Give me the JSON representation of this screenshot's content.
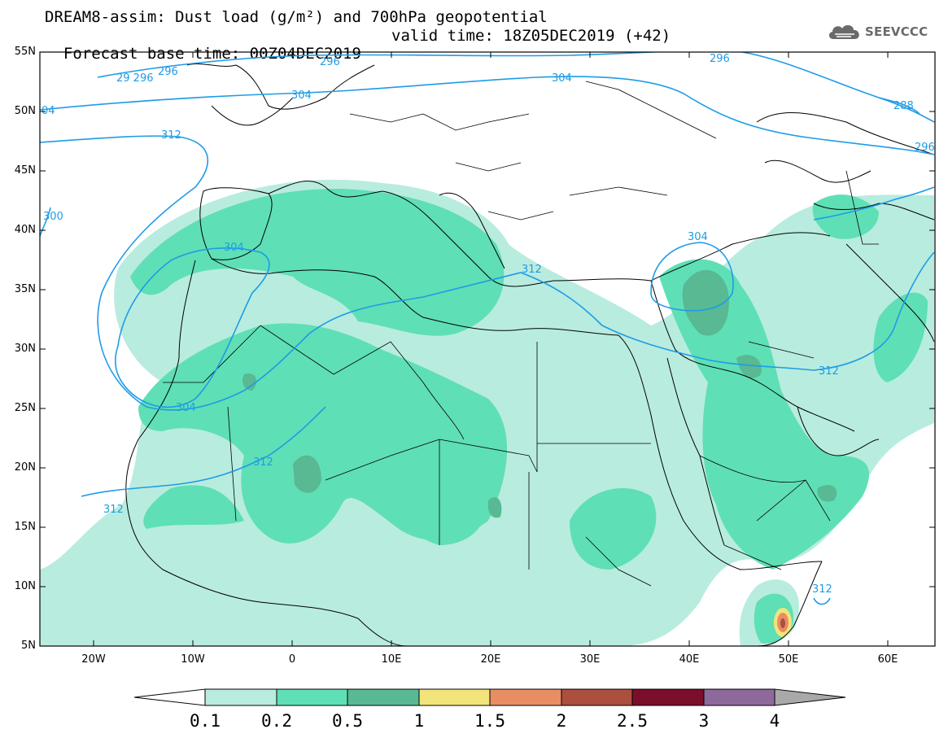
{
  "title": {
    "line1": "DREAM8-assim: Dust load (g/m²) and 700hPa geopotential",
    "base": "Forecast base time: 00Z04DEC2019",
    "valid": "valid time: 18Z05DEC2019 (+42)"
  },
  "logo": {
    "text": "SEEVCCC",
    "icon": "cloud-icon"
  },
  "map": {
    "lat_labels": [
      "55N",
      "50N",
      "45N",
      "40N",
      "35N",
      "30N",
      "25N",
      "20N",
      "15N",
      "10N",
      "5N"
    ],
    "lon_labels": [
      "20W",
      "10W",
      "0",
      "10E",
      "20E",
      "30E",
      "40E",
      "50E",
      "60E"
    ],
    "extent": {
      "lon": [
        -25,
        65
      ],
      "lat": [
        5,
        55
      ]
    }
  },
  "contour_labels": {
    "l296a": "29 296",
    "l296b": "296",
    "l296c": "296",
    "l296d": "296",
    "l296e": "296",
    "l304a": "04",
    "l304b": "304",
    "l304c": "304",
    "l304d": "304",
    "l304e": "304",
    "l304f": "304",
    "l312a": "312",
    "l312b": "312",
    "l312c": "312",
    "l312d": "312",
    "l312e": "312",
    "l312f": "312",
    "l288": "288",
    "l300": "300"
  },
  "colorbar": {
    "labels": [
      "0.1",
      "0.2",
      "0.5",
      "1",
      "1.5",
      "2",
      "2.5",
      "3",
      "4"
    ],
    "colors": [
      "#b8ecdf",
      "#5fdfb5",
      "#58b993",
      "#f2e47a",
      "#e98d65",
      "#ac4f3f",
      "#7b0e2b",
      "#8e6a9c",
      "#a9a9a9"
    ]
  },
  "colors": {
    "contour": "#1e9ce6",
    "dust_low": "#b8ecdf",
    "dust_mid": "#5fdfb5",
    "dust_high": "#58b993"
  }
}
